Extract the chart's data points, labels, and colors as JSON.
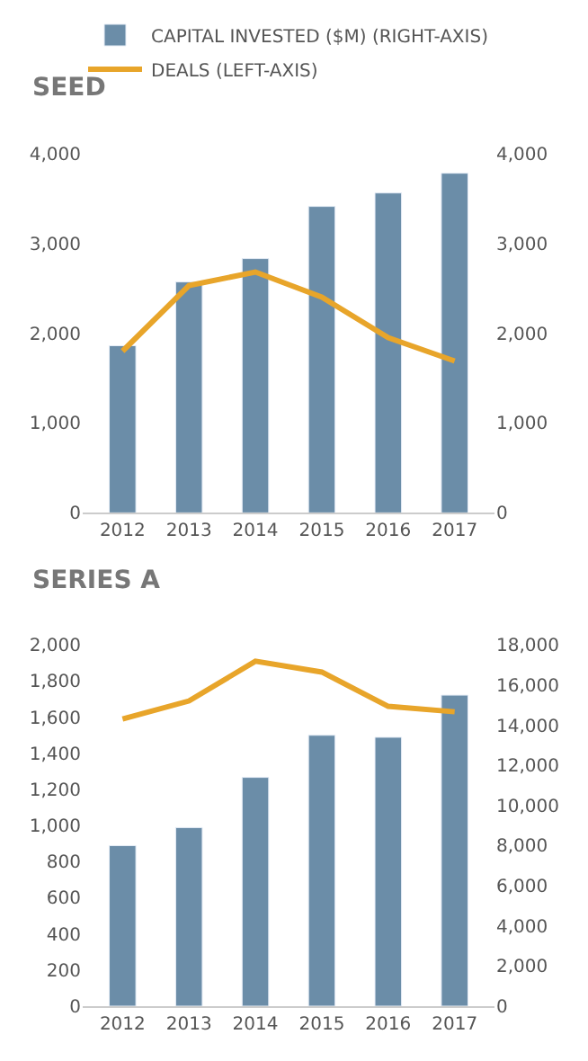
{
  "chart_data": [
    {
      "type": "bar",
      "title": "SEED",
      "categories": [
        "2012",
        "2013",
        "2014",
        "2015",
        "2016",
        "2017"
      ],
      "legend": "top",
      "series": [
        {
          "name": "CAPITAL INVESTED ($M) (RIGHT-AXIS)",
          "axis": "y2",
          "color": "#6b8da8",
          "values": [
            1860,
            2570,
            2830,
            3410,
            3560,
            3780
          ]
        },
        {
          "name": "DEALS (LEFT-AXIS)",
          "type": "line",
          "color": "#e8a52a",
          "marker": "none",
          "values": [
            1800,
            2530,
            2680,
            2400,
            1950,
            1690
          ]
        }
      ],
      "ylim": [
        0,
        4000
      ],
      "yticks": [
        0,
        {
          "value": 1000,
          "label": "1,000"
        },
        {
          "value": 2000,
          "label": "2,000"
        },
        {
          "value": 3000,
          "label": "3,000"
        },
        {
          "value": 4000,
          "label": "4,000"
        }
      ],
      "y2lim": [
        0,
        4000
      ],
      "y2ticks": [
        0,
        {
          "value": 1000,
          "label": "1,000"
        },
        {
          "value": 2000,
          "label": "2,000"
        },
        {
          "value": 3000,
          "label": "3,000"
        },
        {
          "value": 4000,
          "label": "4,000"
        }
      ]
    },
    {
      "type": "bar",
      "title": "SERIES A",
      "categories": [
        "2012",
        "2013",
        "2014",
        "2015",
        "2016",
        "2017"
      ],
      "series": [
        {
          "axis": "y2",
          "color": "#6b8da8",
          "values": [
            8000,
            8900,
            11400,
            13500,
            13400,
            15500
          ]
        },
        {
          "type": "line",
          "color": "#e8a52a",
          "marker": "none",
          "values": [
            1590,
            1690,
            1910,
            1850,
            1660,
            1630
          ]
        }
      ],
      "ylim": [
        0,
        2000
      ],
      "yticks": [
        0,
        200,
        400,
        600,
        800,
        {
          "value": 1000,
          "label": "1,000"
        },
        {
          "value": 1200,
          "label": "1,200"
        },
        {
          "value": 1400,
          "label": "1,400"
        },
        {
          "value": 1600,
          "label": "1,600"
        },
        {
          "value": 1800,
          "label": "1,800"
        },
        {
          "value": 2000,
          "label": "2,000"
        }
      ],
      "y2lim": [
        0,
        18000
      ],
      "y2ticks": [
        0,
        {
          "value": 2000,
          "label": "2,000"
        },
        {
          "value": 4000,
          "label": "4,000"
        },
        {
          "value": 6000,
          "label": "6,000"
        },
        {
          "value": 8000,
          "label": "8,000"
        },
        {
          "value": 10000,
          "label": "10,000"
        },
        {
          "value": 12000,
          "label": "12,000"
        },
        {
          "value": 14000,
          "label": "14,000"
        },
        {
          "value": 16000,
          "label": "16,000"
        },
        {
          "value": 18000,
          "label": "18,000"
        }
      ]
    }
  ]
}
